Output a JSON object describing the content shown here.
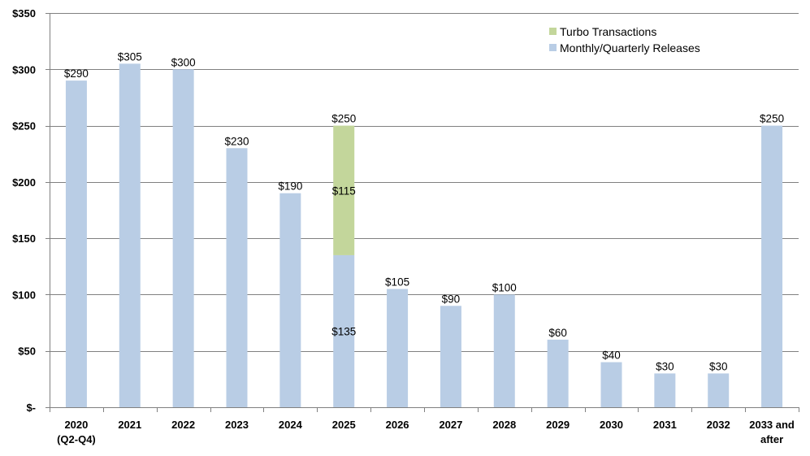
{
  "chart_data": {
    "type": "bar",
    "stacked": true,
    "title": "",
    "xlabel": "",
    "ylabel": "",
    "ylim": [
      0,
      350
    ],
    "y_ticks": [
      0,
      50,
      100,
      150,
      200,
      250,
      300,
      350
    ],
    "y_tick_labels": [
      "$-",
      "$50",
      "$100",
      "$150",
      "$200",
      "$250",
      "$300",
      "$350"
    ],
    "grid": true,
    "legend_position": "top-right",
    "categories": [
      [
        "2020",
        "(Q2-Q4)"
      ],
      [
        "2021"
      ],
      [
        "2022"
      ],
      [
        "2023"
      ],
      [
        "2024"
      ],
      [
        "2025"
      ],
      [
        "2026"
      ],
      [
        "2027"
      ],
      [
        "2028"
      ],
      [
        "2029"
      ],
      [
        "2030"
      ],
      [
        "2031"
      ],
      [
        "2032"
      ],
      [
        "2033 and",
        "after"
      ]
    ],
    "series": [
      {
        "name": "Monthly/Quarterly Releases",
        "color": "#b9cde5",
        "values": [
          290,
          305,
          300,
          230,
          190,
          135,
          105,
          90,
          100,
          60,
          40,
          30,
          30,
          250
        ]
      },
      {
        "name": "Turbo Transactions",
        "color": "#c3d69b",
        "values": [
          0,
          0,
          0,
          0,
          0,
          115,
          0,
          0,
          0,
          0,
          0,
          0,
          0,
          0
        ]
      }
    ],
    "data_labels": {
      "totals": [
        "$290",
        "$305",
        "$300",
        "$230",
        "$190",
        "$250",
        "$105",
        "$90",
        "$100",
        "$60",
        "$40",
        "$30",
        "$30",
        "$250"
      ],
      "segment_labels": [
        {
          "category_index": 5,
          "series": "Monthly/Quarterly Releases",
          "text": "$135"
        },
        {
          "category_index": 5,
          "series": "Turbo Transactions",
          "text": "$115"
        }
      ]
    },
    "legend_order": [
      "Turbo Transactions",
      "Monthly/Quarterly Releases"
    ],
    "colors": {
      "grid": "#808080",
      "axis": "#808080",
      "background": "#ffffff"
    }
  }
}
